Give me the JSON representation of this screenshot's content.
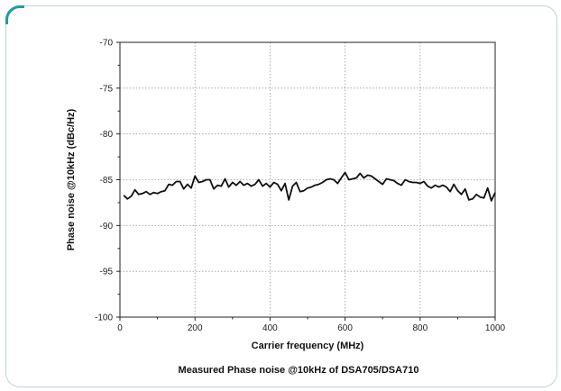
{
  "chart_data": {
    "type": "line",
    "xlabel": "Carrier frequency (MHz)",
    "ylabel": "Phase noise @10kHz (dBc/Hz)",
    "caption": "Measured Phase noise @10kHz of DSA705/DSA710",
    "xlim": [
      0,
      1000
    ],
    "ylim": [
      -100,
      -70
    ],
    "x_ticks": [
      0,
      200,
      400,
      600,
      800,
      1000
    ],
    "y_ticks": [
      -70,
      -75,
      -80,
      -85,
      -90,
      -95,
      -100
    ],
    "x_tick_labels": [
      "0",
      "200",
      "400",
      "600",
      "800",
      "1000"
    ],
    "y_tick_labels": [
      "-70",
      "-75",
      "-80",
      "-85",
      "-90",
      "-95",
      "-100"
    ],
    "grid": true,
    "series": [
      {
        "color": "#111111",
        "x": [
          10,
          20,
          30,
          40,
          50,
          60,
          70,
          80,
          90,
          100,
          110,
          120,
          130,
          140,
          150,
          160,
          170,
          180,
          190,
          200,
          210,
          220,
          230,
          240,
          250,
          260,
          270,
          280,
          290,
          300,
          310,
          320,
          330,
          340,
          350,
          360,
          370,
          380,
          390,
          400,
          410,
          420,
          430,
          440,
          450,
          460,
          470,
          480,
          490,
          500,
          510,
          520,
          530,
          540,
          550,
          560,
          570,
          580,
          590,
          600,
          610,
          620,
          630,
          640,
          650,
          660,
          670,
          680,
          690,
          700,
          710,
          720,
          730,
          740,
          750,
          760,
          770,
          780,
          790,
          800,
          810,
          820,
          830,
          840,
          850,
          860,
          870,
          880,
          890,
          900,
          910,
          920,
          930,
          940,
          950,
          960,
          970,
          980,
          990,
          1000
        ],
        "values": [
          -86.7,
          -87.1,
          -86.8,
          -86.1,
          -86.6,
          -86.5,
          -86.3,
          -86.6,
          -86.4,
          -86.5,
          -86.3,
          -86.2,
          -85.5,
          -85.6,
          -85.2,
          -85.2,
          -86.0,
          -85.5,
          -85.9,
          -84.6,
          -85.3,
          -85.2,
          -85.0,
          -85.0,
          -86.0,
          -85.6,
          -85.7,
          -84.9,
          -85.8,
          -85.3,
          -85.6,
          -85.2,
          -85.6,
          -85.4,
          -85.7,
          -85.5,
          -85.0,
          -85.7,
          -85.4,
          -85.8,
          -85.3,
          -85.5,
          -86.2,
          -85.4,
          -87.2,
          -85.7,
          -85.3,
          -86.3,
          -86.2,
          -85.9,
          -85.8,
          -85.6,
          -85.5,
          -85.3,
          -85.0,
          -84.9,
          -85.0,
          -85.4,
          -84.8,
          -84.2,
          -85.0,
          -84.9,
          -84.8,
          -84.3,
          -84.8,
          -84.5,
          -84.6,
          -84.9,
          -85.2,
          -85.5,
          -84.9,
          -85.0,
          -85.1,
          -85.4,
          -85.6,
          -85.0,
          -85.2,
          -85.3,
          -85.3,
          -85.4,
          -85.2,
          -85.7,
          -85.9,
          -85.6,
          -85.8,
          -85.6,
          -85.8,
          -86.3,
          -85.5,
          -86.2,
          -86.6,
          -86.0,
          -87.2,
          -87.1,
          -86.6,
          -86.9,
          -87.0,
          -85.9,
          -87.3,
          -86.4
        ]
      }
    ]
  }
}
